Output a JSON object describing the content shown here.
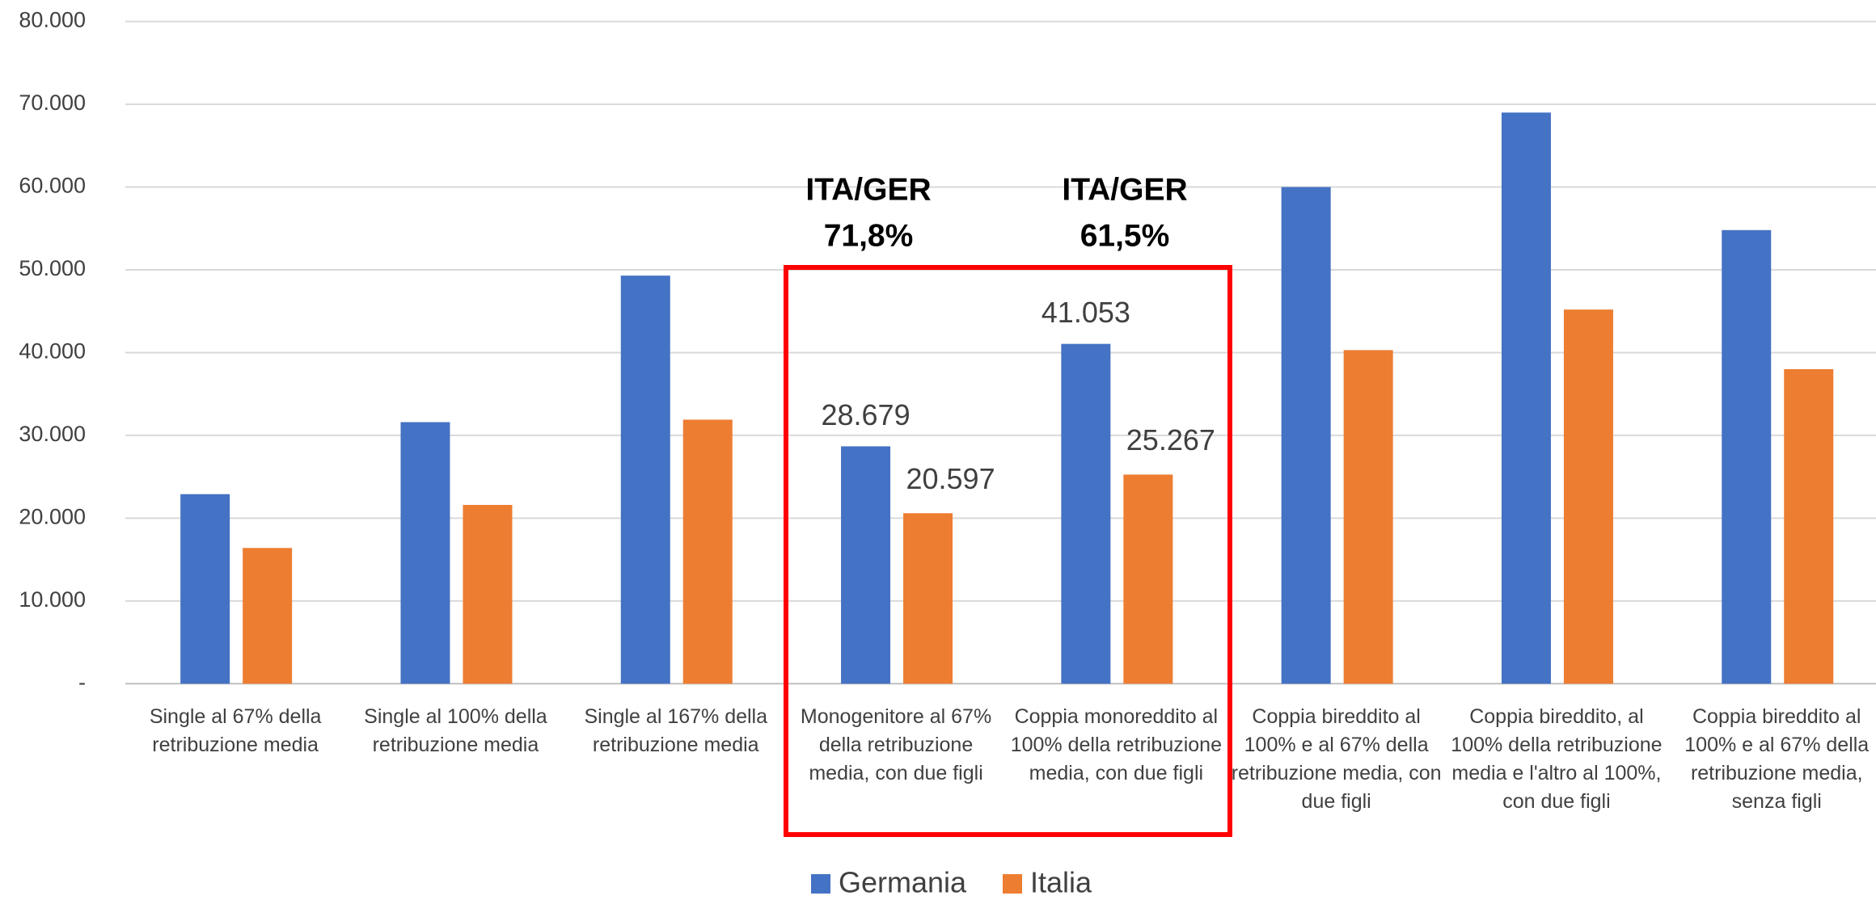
{
  "chart_data": {
    "type": "bar",
    "categories": [
      "Single al 67% della retribuzione media",
      "Single al 100% della retribuzione media",
      "Single al 167% della retribuzione media",
      "Monogenitore al 67% della retribuzione media, con due figli",
      "Coppia monoreddito al 100% della retribuzione media, con due figli",
      "Coppia bireddito al 100% e al 67% della retribuzione media, con due figli",
      "Coppia bireddito, al 100% della retribuzione media e l'altro al 100%, con due figli",
      "Coppia bireddito al 100% e al 67% della retribuzione media, senza figli"
    ],
    "series": [
      {
        "name": "Germania",
        "color": "#4472c4",
        "values": [
          22900,
          31600,
          49300,
          28679,
          41053,
          60000,
          69000,
          54800
        ],
        "value_labels": [
          null,
          null,
          null,
          "28.679",
          "41.053",
          null,
          null,
          null
        ]
      },
      {
        "name": "Italia",
        "color": "#ed7d31",
        "values": [
          16400,
          21600,
          31900,
          20597,
          25267,
          40300,
          45200,
          38000
        ],
        "value_labels": [
          null,
          null,
          null,
          "20.597",
          "25.267",
          null,
          null,
          null
        ]
      }
    ],
    "ylim": [
      0,
      80000
    ],
    "yticks": [
      {
        "value": 0,
        "label": "-"
      },
      {
        "value": 10000,
        "label": "10.000"
      },
      {
        "value": 20000,
        "label": "20.000"
      },
      {
        "value": 30000,
        "label": "30.000"
      },
      {
        "value": 40000,
        "label": "40.000"
      },
      {
        "value": 50000,
        "label": "50.000"
      },
      {
        "value": 60000,
        "label": "60.000"
      },
      {
        "value": 70000,
        "label": "70.000"
      },
      {
        "value": 80000,
        "label": "80.000"
      }
    ],
    "grid": true,
    "legend": "bottom",
    "annotations": [
      {
        "lines": [
          "ITA/GER",
          "71,8%"
        ]
      },
      {
        "lines": [
          "ITA/GER",
          "61,5%"
        ]
      }
    ]
  }
}
